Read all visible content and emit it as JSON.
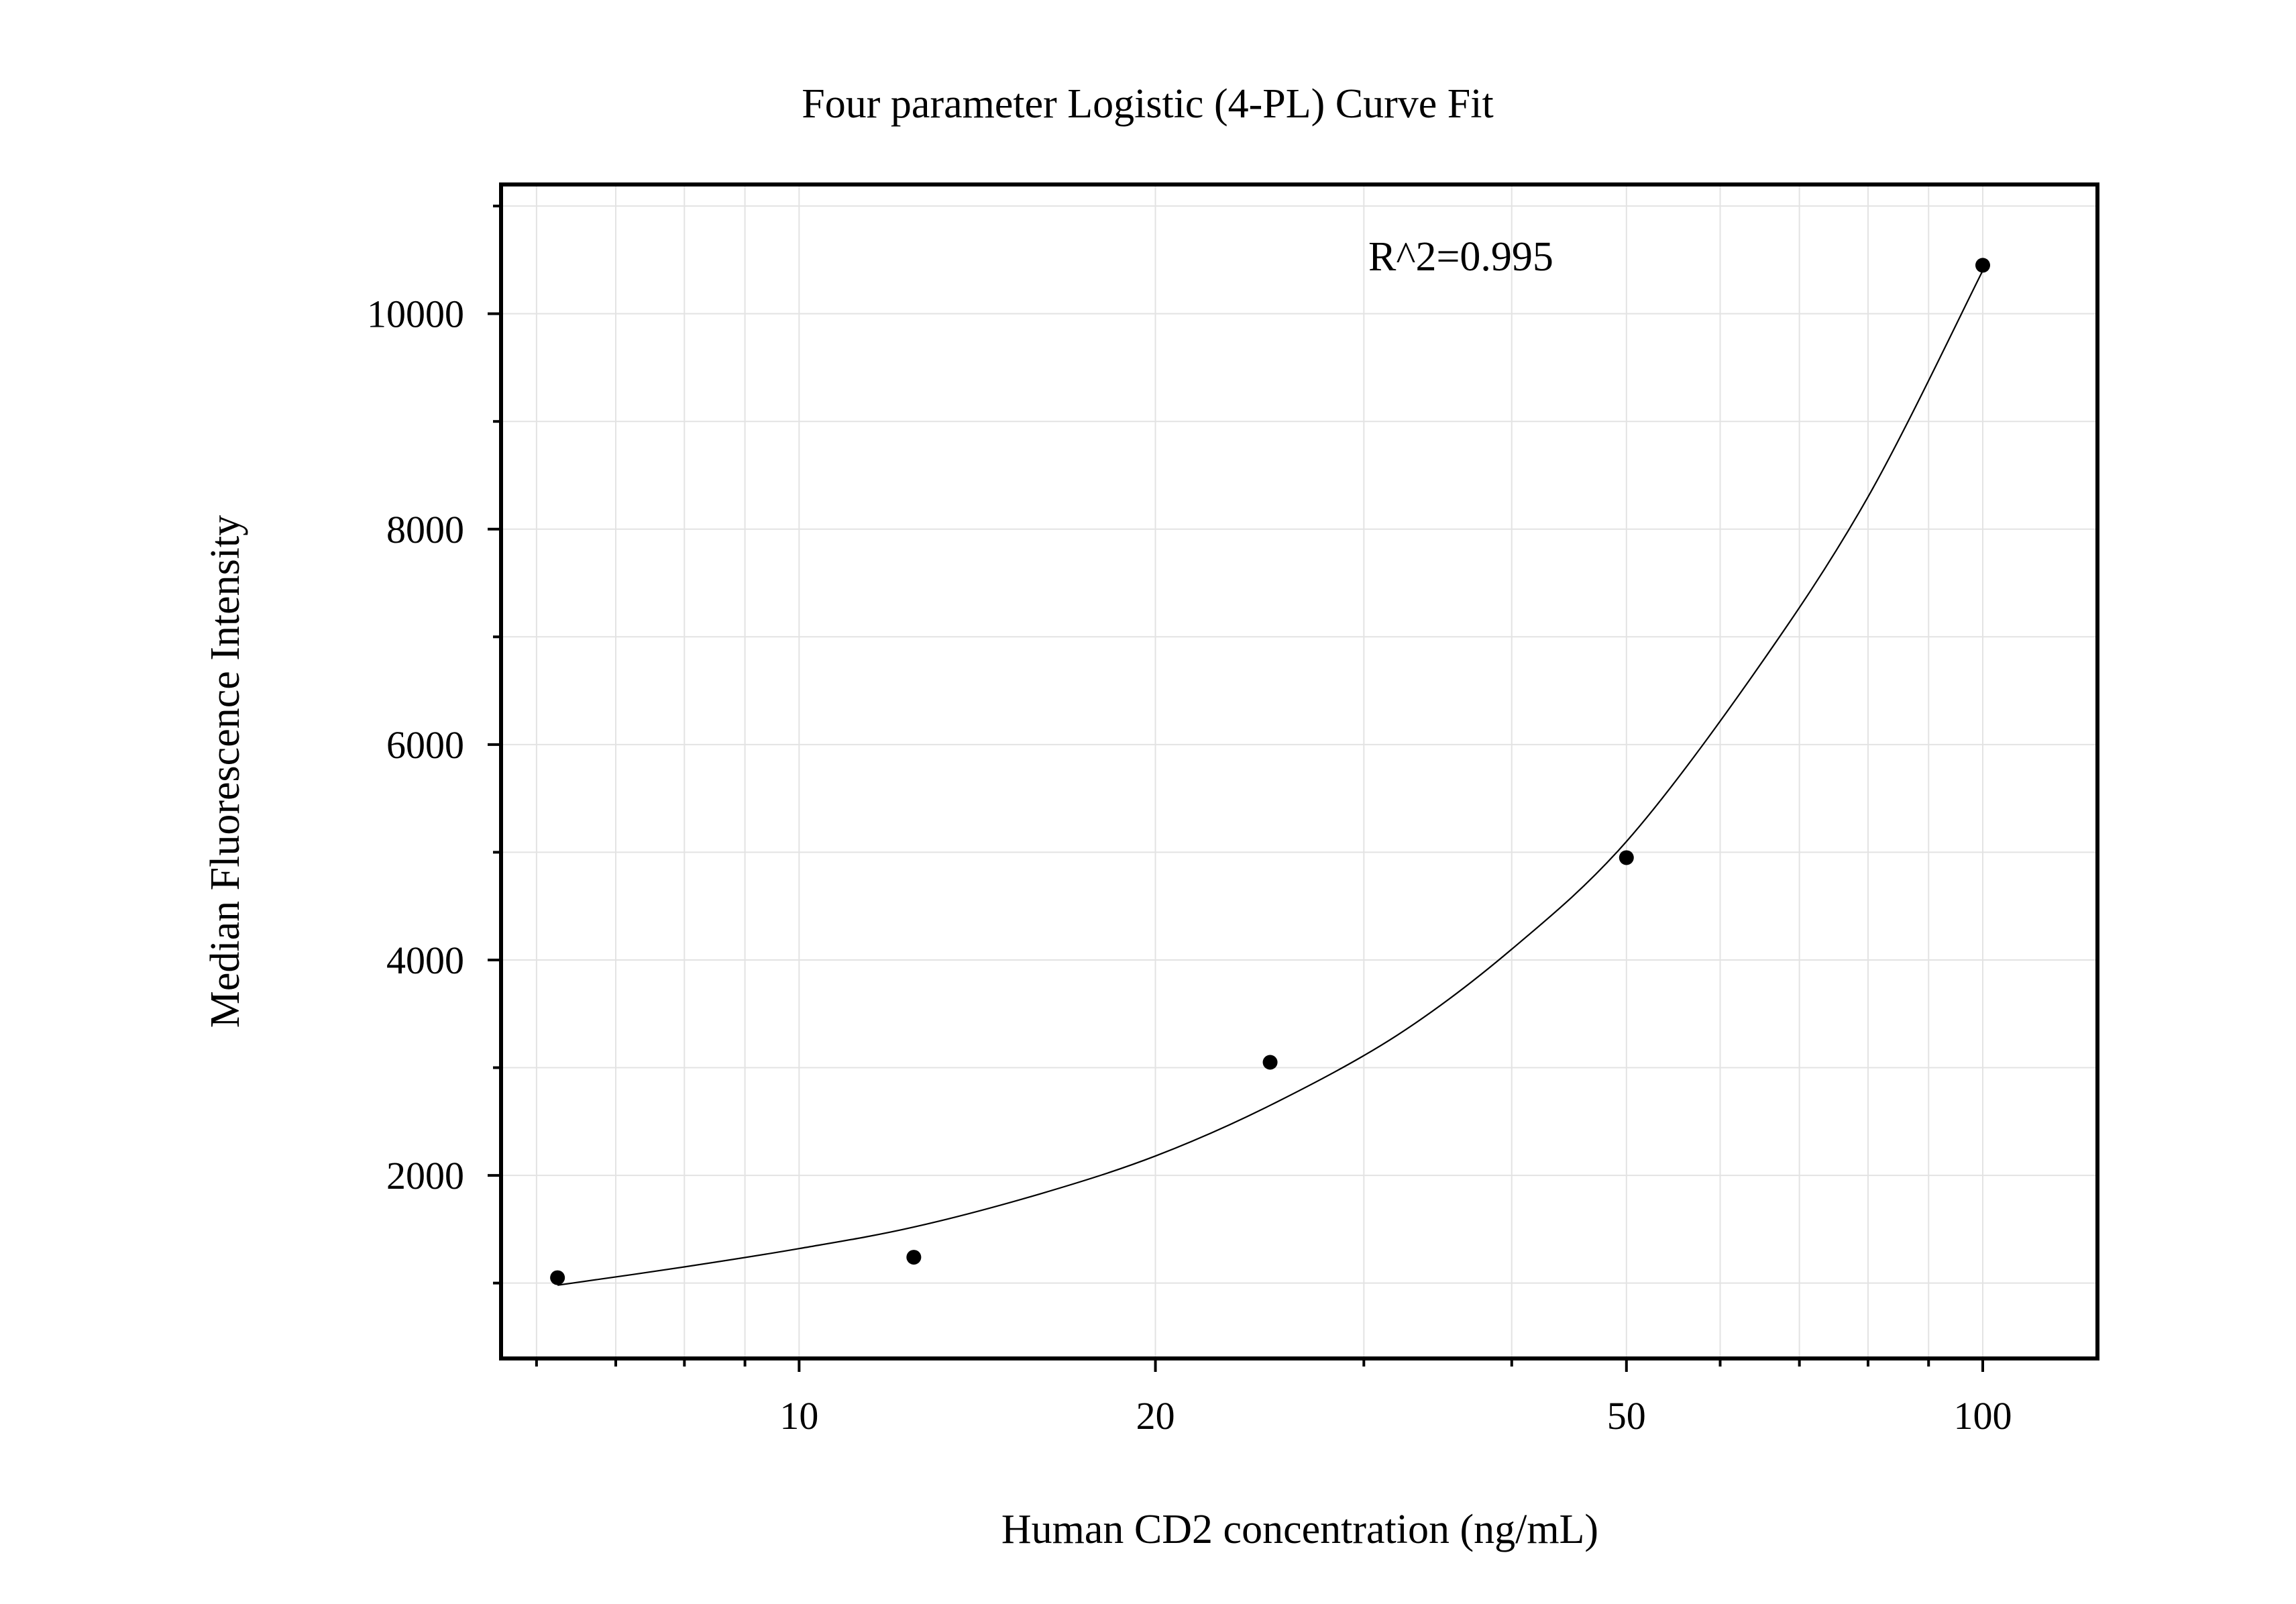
{
  "chart_data": {
    "type": "scatter",
    "title": "Four parameter Logistic (4-PL) Curve Fit",
    "xlabel": "Human CD2 concentration (ng/mL)",
    "ylabel": "Median Fluorescence Intensity",
    "x_scale": "log",
    "xlim": [
      5.6,
      125
    ],
    "ylim": [
      300,
      11200
    ],
    "x_ticks": [
      10,
      20,
      50,
      100
    ],
    "x_tick_labels": [
      "10",
      "20",
      "50",
      "100"
    ],
    "y_ticks": [
      2000,
      4000,
      6000,
      8000,
      10000
    ],
    "y_tick_labels": [
      "2000",
      "4000",
      "6000",
      "8000",
      "10000"
    ],
    "grid": true,
    "annotation": "R^2=0.995",
    "points": {
      "x": [
        6.25,
        12.5,
        25,
        50,
        100
      ],
      "y": [
        1050,
        1240,
        3050,
        4950,
        10450
      ]
    },
    "fit_curve": {
      "type": "4PL",
      "x": [
        6.25,
        8,
        10,
        12.5,
        16,
        20,
        25,
        32,
        40,
        50,
        64,
        80,
        100
      ],
      "y": [
        980,
        1150,
        1320,
        1520,
        1830,
        2180,
        2650,
        3300,
        4100,
        5100,
        6650,
        8300,
        10400
      ]
    }
  }
}
